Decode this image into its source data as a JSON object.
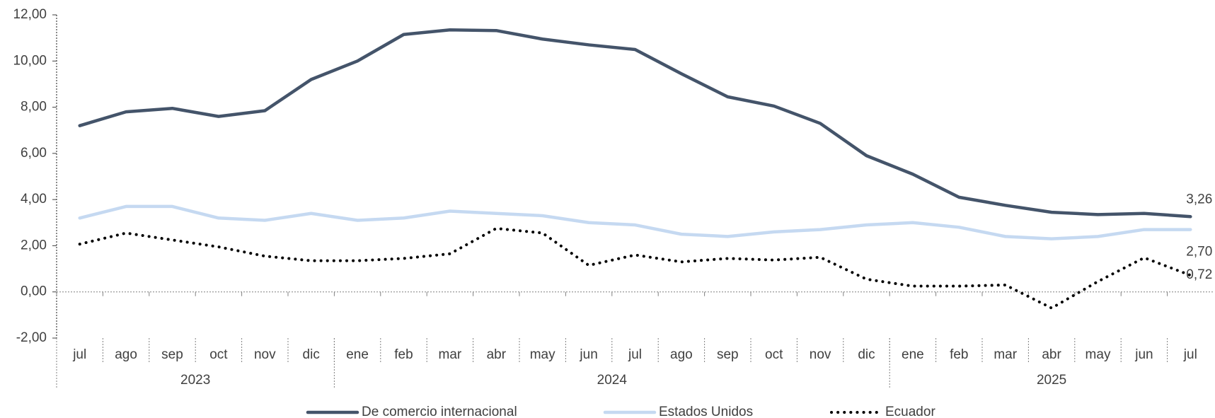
{
  "chart_data": {
    "type": "line",
    "categories": [
      "jul",
      "ago",
      "sep",
      "oct",
      "nov",
      "dic",
      "ene",
      "feb",
      "mar",
      "abr",
      "may",
      "jun",
      "jul",
      "ago",
      "sep",
      "oct",
      "nov",
      "dic",
      "ene",
      "feb",
      "mar",
      "abr",
      "may",
      "jun",
      "jul"
    ],
    "x_groups": [
      {
        "label": "2023",
        "count": 6
      },
      {
        "label": "2024",
        "count": 12
      },
      {
        "label": "2025",
        "count": 7
      }
    ],
    "series": [
      {
        "name": "De comercio internacional",
        "color": "#44546a",
        "style": "solid",
        "values": [
          7.2,
          7.8,
          7.95,
          7.6,
          7.85,
          9.2,
          10.0,
          11.15,
          11.35,
          11.32,
          10.95,
          10.7,
          10.5,
          9.45,
          8.45,
          8.05,
          7.3,
          5.9,
          5.1,
          4.1,
          3.75,
          3.45,
          3.35,
          3.4,
          3.26
        ],
        "value_labels": [
          null,
          null,
          null,
          null,
          null,
          null,
          null,
          null,
          null,
          null,
          null,
          null,
          null,
          null,
          null,
          null,
          null,
          null,
          null,
          null,
          null,
          null,
          null,
          null,
          "3,26"
        ]
      },
      {
        "name": "Estados Unidos",
        "color": "#c5d9f1",
        "style": "solid",
        "values": [
          3.2,
          3.7,
          3.7,
          3.2,
          3.1,
          3.4,
          3.1,
          3.2,
          3.5,
          3.4,
          3.3,
          3.0,
          2.9,
          2.5,
          2.4,
          2.6,
          2.7,
          2.9,
          3.0,
          2.8,
          2.4,
          2.3,
          2.4,
          2.7,
          2.7
        ],
        "value_labels": [
          null,
          null,
          null,
          null,
          null,
          null,
          null,
          null,
          null,
          null,
          null,
          null,
          null,
          null,
          null,
          null,
          null,
          null,
          null,
          null,
          null,
          null,
          null,
          null,
          "2,70"
        ]
      },
      {
        "name": "Ecuador",
        "color": "#000000",
        "style": "dotted",
        "values": [
          2.07,
          2.55,
          2.25,
          1.95,
          1.55,
          1.35,
          1.35,
          1.45,
          1.65,
          2.75,
          2.55,
          1.15,
          1.6,
          1.3,
          1.45,
          1.38,
          1.5,
          0.55,
          0.25,
          0.25,
          0.3,
          -0.7,
          0.45,
          1.48,
          0.72
        ],
        "value_labels": [
          null,
          null,
          null,
          null,
          null,
          null,
          null,
          null,
          null,
          null,
          null,
          null,
          null,
          null,
          null,
          null,
          null,
          null,
          null,
          null,
          null,
          null,
          null,
          null,
          "0,72"
        ]
      }
    ],
    "ylim": [
      -2,
      12
    ],
    "yticks": [
      {
        "value": -2,
        "label": "-2,00"
      },
      {
        "value": 0,
        "label": "0,00"
      },
      {
        "value": 2,
        "label": "2,00"
      },
      {
        "value": 4,
        "label": "4,00"
      },
      {
        "value": 6,
        "label": "6,00"
      },
      {
        "value": 8,
        "label": "8,00"
      },
      {
        "value": 10,
        "label": "10,00"
      },
      {
        "value": 12,
        "label": "12,00"
      }
    ],
    "grid": false,
    "legend": "bottom"
  }
}
